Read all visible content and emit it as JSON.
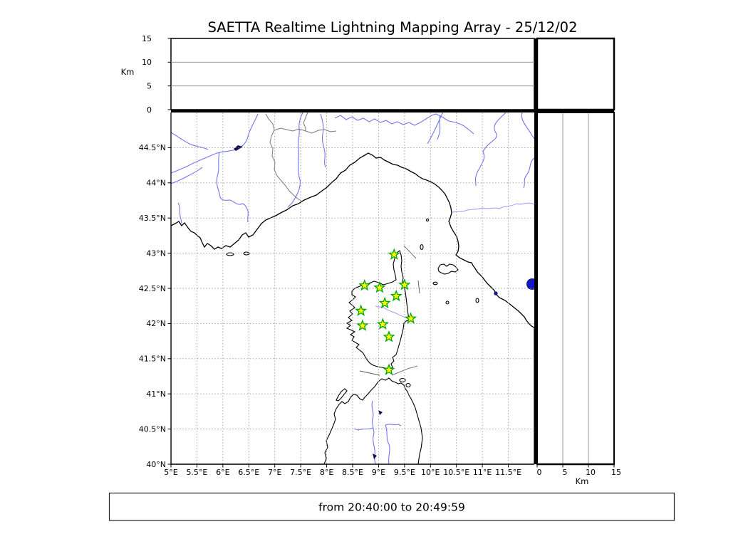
{
  "title": "SAETTA Realtime Lightning Mapping Array - 25/12/02",
  "time_label": "from 20:40:00 to 20:49:59",
  "altitude_axis": {
    "label": "Km",
    "min": 0,
    "max": 15,
    "ticks": [
      "0",
      "5",
      "10",
      "15"
    ],
    "tick_values": [
      0,
      5,
      10,
      15
    ],
    "gridlines": [
      5,
      10
    ]
  },
  "bottom_km_axis": {
    "label": "Km",
    "min": 0,
    "max": 15,
    "ticks": [
      "0",
      "5",
      "10",
      "15"
    ],
    "tick_values": [
      0,
      5,
      10,
      15
    ],
    "gridlines": [
      5,
      10
    ]
  },
  "map_axes": {
    "lon_range": [
      5,
      12
    ],
    "lat_range": [
      40,
      45
    ],
    "grid_style": "dashed",
    "lon_ticks": [
      {
        "value": 5,
        "label": "5°E"
      },
      {
        "value": 5.5,
        "label": "5.5°E"
      },
      {
        "value": 6,
        "label": "6°E"
      },
      {
        "value": 6.5,
        "label": "6.5°E"
      },
      {
        "value": 7,
        "label": "7°E"
      },
      {
        "value": 7.5,
        "label": "7.5°E"
      },
      {
        "value": 8,
        "label": "8°E"
      },
      {
        "value": 8.5,
        "label": "8.5°E"
      },
      {
        "value": 9,
        "label": "9°E"
      },
      {
        "value": 9.5,
        "label": "9.5°E"
      },
      {
        "value": 10,
        "label": "10°E"
      },
      {
        "value": 10.5,
        "label": "10.5°E"
      },
      {
        "value": 11,
        "label": "11°E"
      },
      {
        "value": 11.5,
        "label": "11.5°E"
      }
    ],
    "lat_ticks": [
      {
        "value": 40,
        "label": "40°N"
      },
      {
        "value": 40.5,
        "label": "40.5°N"
      },
      {
        "value": 41,
        "label": "41°N"
      },
      {
        "value": 41.5,
        "label": "41.5°N"
      },
      {
        "value": 42,
        "label": "42°N"
      },
      {
        "value": 42.5,
        "label": "42.5°N"
      },
      {
        "value": 43,
        "label": "43°N"
      },
      {
        "value": 43.5,
        "label": "43.5°N"
      },
      {
        "value": 44,
        "label": "44°N"
      },
      {
        "value": 44.5,
        "label": "44.5°N"
      }
    ]
  },
  "stations": [
    {
      "lon": 9.3,
      "lat": 42.98
    },
    {
      "lon": 8.73,
      "lat": 42.54
    },
    {
      "lon": 9.02,
      "lat": 42.51
    },
    {
      "lon": 9.5,
      "lat": 42.55
    },
    {
      "lon": 9.34,
      "lat": 42.39
    },
    {
      "lon": 9.12,
      "lat": 42.29
    },
    {
      "lon": 8.66,
      "lat": 42.18
    },
    {
      "lon": 9.62,
      "lat": 42.07
    },
    {
      "lon": 9.08,
      "lat": 41.99
    },
    {
      "lon": 8.69,
      "lat": 41.97
    },
    {
      "lon": 9.2,
      "lat": 41.81
    },
    {
      "lon": 9.2,
      "lat": 41.34
    }
  ],
  "colors": {
    "sea": "#aee1f2",
    "land": "#ffffff",
    "coastline": "#000000",
    "river": "#7474f2",
    "lake": "#1418c8",
    "grid": "#999999",
    "country_border": "#787878",
    "station_fill": "#fdfd00",
    "station_stroke": "#00a400"
  },
  "chart_data": {
    "type": "map-scatter",
    "title": "SAETTA Realtime Lightning Mapping Array - 25/12/02",
    "time_window": "from 20:40:00 to 20:49:59",
    "lightning_points": 0,
    "station_count": 12,
    "panels": [
      "top: altitude 0-15 Km vs longitude (empty)",
      "center: map 5°E-12°E / 40°N-45°N with 12 green star station markers on Corsica",
      "right: altitude 0-15 Km vs latitude (empty)"
    ]
  }
}
